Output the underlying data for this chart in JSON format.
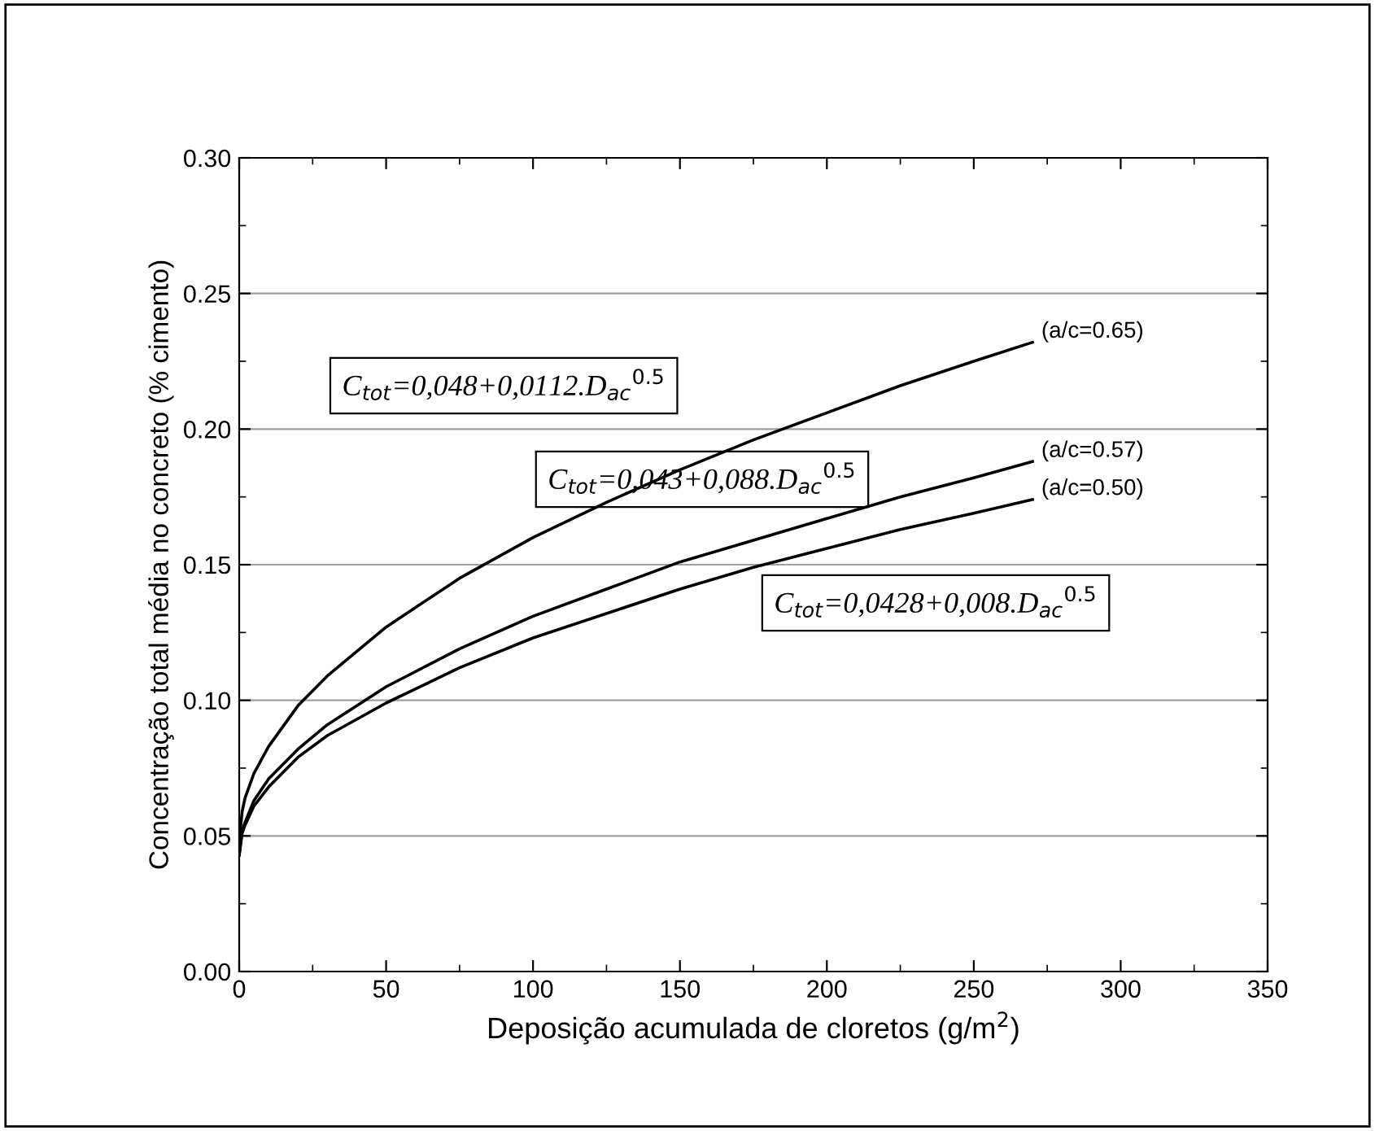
{
  "chart_data": {
    "type": "line",
    "xlabel": "Deposição acumulada de cloretos (g/m$^{2}$)",
    "ylabel": "Concentração total média no concreto (% cimento)",
    "x": [
      0,
      1,
      2,
      5,
      10,
      20,
      30,
      50,
      75,
      100,
      125,
      150,
      175,
      200,
      225,
      250,
      270
    ],
    "series": [
      {
        "name": "(a/c=0.65)",
        "color": "#000000",
        "values": [
          0.048,
          0.059,
          0.064,
          0.073,
          0.083,
          0.098,
          0.109,
          0.127,
          0.145,
          0.16,
          0.173,
          0.185,
          0.196,
          0.206,
          0.216,
          0.225,
          0.232
        ]
      },
      {
        "name": "(a/c=0.57)",
        "color": "#000000",
        "values": [
          0.043,
          0.052,
          0.055,
          0.063,
          0.071,
          0.082,
          0.091,
          0.105,
          0.119,
          0.131,
          0.141,
          0.151,
          0.159,
          0.167,
          0.175,
          0.182,
          0.188
        ]
      },
      {
        "name": "(a/c=0.50)",
        "color": "#000000",
        "values": [
          0.043,
          0.051,
          0.054,
          0.061,
          0.068,
          0.079,
          0.087,
          0.099,
          0.112,
          0.123,
          0.132,
          0.141,
          0.149,
          0.156,
          0.163,
          0.169,
          0.174
        ]
      }
    ],
    "annotations": [
      "C$_{tot}$=0,048+0,0112.D$_{ac}$$^{0.5}$",
      "C$_{tot}$=0,043+0,088.D$_{ac}$$^{0.5}$",
      "C$_{tot}$=0,0428+0,008.D$_{ac}$$^{0.5}$"
    ],
    "xlim": [
      0,
      350
    ],
    "xticks": [
      0,
      50,
      100,
      150,
      200,
      250,
      300,
      350
    ],
    "ylim": [
      0,
      0.3
    ],
    "yticks": [
      {
        "value": 0,
        "label": "0.00"
      },
      {
        "value": 0.05,
        "label": "0.05"
      },
      {
        "value": 0.1,
        "label": "0.10"
      },
      {
        "value": 0.15,
        "label": "0.15"
      },
      {
        "value": 0.2,
        "label": "0.20"
      },
      {
        "value": 0.25,
        "label": "0.25"
      },
      {
        "value": 0.3,
        "label": "0.30"
      }
    ],
    "grid": "y",
    "marker": "none",
    "line_style": "solid"
  }
}
